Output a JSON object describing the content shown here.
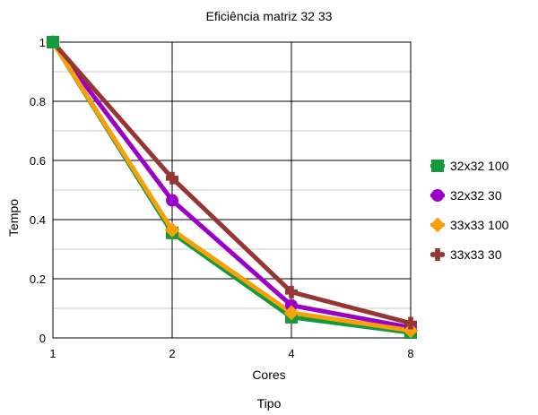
{
  "chart_data": {
    "type": "line",
    "title": "Eficiência matriz 32 33",
    "xlabel": "Cores",
    "ylabel": "Tempo",
    "footer_label": "Tipo",
    "categories": [
      "1",
      "2",
      "4",
      "8"
    ],
    "ylim": [
      0,
      1
    ],
    "yticks": [
      "0",
      "0.2",
      "0.4",
      "0.6",
      "0.8",
      "1"
    ],
    "grid": true,
    "legend_position": "right",
    "series": [
      {
        "name": "32x32 100",
        "color": "#129a3c",
        "marker": "square",
        "values": [
          1.0,
          0.355,
          0.07,
          0.018
        ]
      },
      {
        "name": "32x32 30",
        "color": "#9b00c8",
        "marker": "circle",
        "values": [
          1.0,
          0.465,
          0.11,
          0.035
        ]
      },
      {
        "name": "33x33 100",
        "color": "#f7a008",
        "marker": "diamond",
        "values": [
          1.0,
          0.365,
          0.085,
          0.025
        ]
      },
      {
        "name": "33x33 30",
        "color": "#963634",
        "marker": "cross",
        "values": [
          1.0,
          0.54,
          0.155,
          0.05
        ]
      }
    ]
  }
}
